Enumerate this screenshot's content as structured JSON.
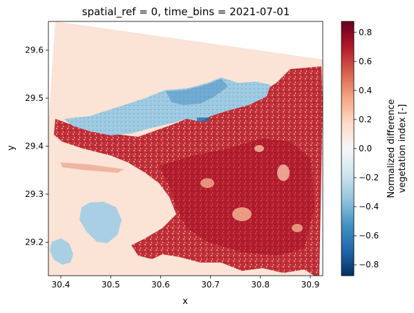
{
  "chart_data": {
    "type": "heatmap",
    "title": "spatial_ref = 0, time_bins = 2021-07-01",
    "xlabel": "x",
    "ylabel": "y",
    "xlim": [
      30.375,
      30.925
    ],
    "ylim": [
      29.13,
      29.66
    ],
    "x_ticks": [
      30.4,
      30.5,
      30.6,
      30.7,
      30.8,
      30.9
    ],
    "x_tick_labels": [
      "30.4",
      "30.5",
      "30.6",
      "30.7",
      "30.8",
      "30.9"
    ],
    "y_ticks": [
      29.2,
      29.3,
      29.4,
      29.5,
      29.6
    ],
    "y_tick_labels": [
      "29.2",
      "29.3",
      "29.4",
      "29.5",
      "29.6"
    ],
    "colorbar": {
      "label_lines": [
        "Normalized difference",
        "vegetation index [-]"
      ],
      "colormap": "RdBu_r",
      "vmin": -0.875,
      "vmax": 0.875,
      "ticks": [
        -0.8,
        -0.6,
        -0.4,
        -0.2,
        0.0,
        0.2,
        0.4,
        0.6,
        0.8
      ],
      "tick_labels": [
        "−0.8",
        "−0.6",
        "−0.4",
        "−0.2",
        "0.0",
        "0.2",
        "0.4",
        "0.6",
        "0.8"
      ]
    },
    "regions": [
      {
        "name": "background",
        "approx_value": 0.06
      },
      {
        "name": "lake",
        "approx_value": -0.3
      },
      {
        "name": "southwest-ponds",
        "approx_value": -0.2
      },
      {
        "name": "vegetated-floodplain",
        "approx_value": 0.6
      }
    ],
    "grid": false
  }
}
